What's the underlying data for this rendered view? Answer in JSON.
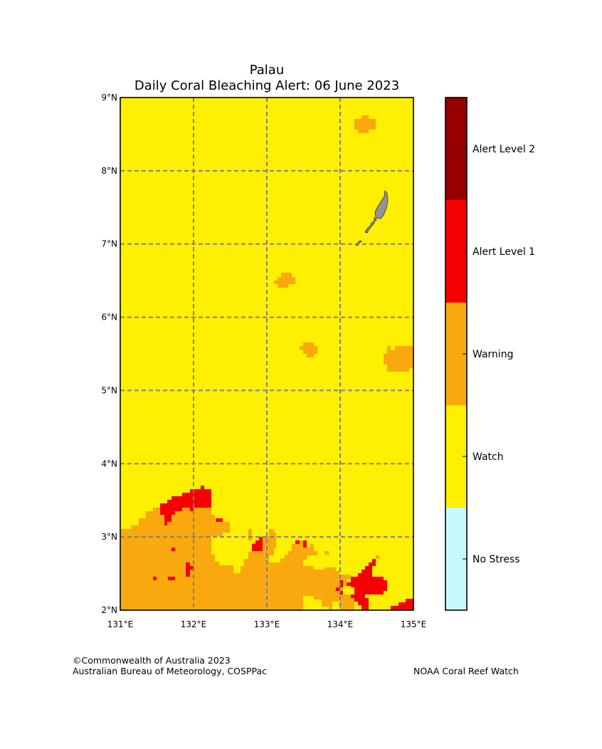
{
  "map": {
    "title_line1": "Palau",
    "title_line2": "Daily Coral Bleaching Alert: 06 June 2023",
    "lon_range": [
      131,
      135
    ],
    "lat_range": [
      2,
      9
    ],
    "lon_ticks": [
      {
        "value": 131,
        "label": "131°E"
      },
      {
        "value": 132,
        "label": "132°E"
      },
      {
        "value": 133,
        "label": "133°E"
      },
      {
        "value": 134,
        "label": "134°E"
      },
      {
        "value": 135,
        "label": "135°E"
      }
    ],
    "lat_ticks": [
      {
        "value": 2,
        "label": "2°N"
      },
      {
        "value": 3,
        "label": "3°N"
      },
      {
        "value": 4,
        "label": "4°N"
      },
      {
        "value": 5,
        "label": "5°N"
      },
      {
        "value": 6,
        "label": "6°N"
      },
      {
        "value": 7,
        "label": "7°N"
      },
      {
        "value": 8,
        "label": "8°N"
      },
      {
        "value": 9,
        "label": "9°N"
      }
    ],
    "gridlines": "dashed",
    "background_level": "Watch",
    "land_color": "#939393"
  },
  "legend": {
    "levels": [
      {
        "label": "No Stress",
        "color": "#c6fafa"
      },
      {
        "label": "Watch",
        "color": "#ffef00"
      },
      {
        "label": "Warning",
        "color": "#f9a80e"
      },
      {
        "label": "Alert Level 1",
        "color": "#f50000"
      },
      {
        "label": "Alert Level 2",
        "color": "#960000"
      }
    ]
  },
  "credits": {
    "left_line1": "©Commonwealth of Australia 2023",
    "left_line2": "Australian Bureau of Meteorology, COSPPac",
    "right": "NOAA Coral Reef Watch"
  }
}
